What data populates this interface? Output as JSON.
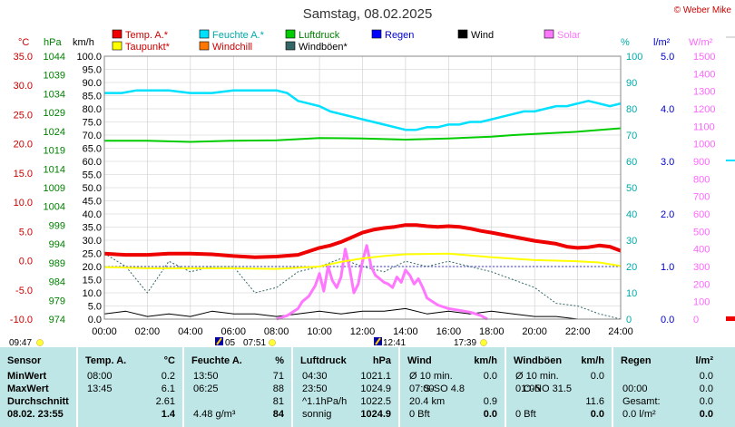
{
  "chart_data": {
    "type": "line",
    "title": "Samstag, 08.02.2025",
    "copyright": "© Weber Mike",
    "x_ticks": [
      "00:00",
      "02:00",
      "04:00",
      "06:00",
      "08:00",
      "10:00",
      "12:00",
      "14:00",
      "16:00",
      "18:00",
      "20:00",
      "22:00",
      "24:00"
    ],
    "axes": {
      "temp_c": {
        "unit": "°C",
        "ticks": [
          "35.0",
          "30.0",
          "25.0",
          "20.0",
          "15.0",
          "10.0",
          "5.0",
          "0.0",
          "-5.0",
          "-10.0"
        ],
        "range": [
          -10,
          35
        ],
        "color": "#cc0000"
      },
      "pressure_hpa": {
        "unit": "hPa",
        "ticks": [
          "1044",
          "1039",
          "1034",
          "1029",
          "1024",
          "1019",
          "1014",
          "1009",
          "1004",
          "999",
          "994",
          "989",
          "984",
          "979",
          "974"
        ],
        "range": [
          974,
          1044
        ],
        "color": "#008000"
      },
      "wind_kmh": {
        "unit": "km/h",
        "ticks": [
          "100.0",
          "95.0",
          "90.0",
          "85.0",
          "80.0",
          "75.0",
          "70.0",
          "65.0",
          "60.0",
          "55.0",
          "50.0",
          "45.0",
          "40.0",
          "35.0",
          "30.0",
          "25.0",
          "20.0",
          "15.0",
          "10.0",
          "5.0",
          "0.0"
        ],
        "range": [
          0,
          100
        ],
        "color": "#000000"
      },
      "humidity_pct": {
        "unit": "%",
        "ticks": [
          "100",
          "90",
          "80",
          "70",
          "60",
          "50",
          "40",
          "30",
          "20",
          "10",
          "0"
        ],
        "range": [
          0,
          100
        ],
        "color": "#00aaaa"
      },
      "rain_lm2": {
        "unit": "l/m²",
        "ticks": [
          "5.0",
          "4.0",
          "3.0",
          "2.0",
          "1.0",
          "0.0"
        ],
        "range": [
          0,
          5
        ],
        "color": "#0000cc"
      },
      "solar_wm2": {
        "unit": "W/m²",
        "ticks": [
          "1500",
          "1400",
          "1300",
          "1200",
          "1100",
          "1000",
          "900",
          "800",
          "700",
          "600",
          "500",
          "400",
          "300",
          "200",
          "100",
          "0"
        ],
        "range": [
          0,
          1500
        ],
        "color": "#ff66ff"
      }
    },
    "legend": [
      {
        "name": "Temp. A.*",
        "color": "#ee0000"
      },
      {
        "name": "Feuchte A.*",
        "color": "#00e0ff"
      },
      {
        "name": "Luftdruck",
        "color": "#00cc00"
      },
      {
        "name": "Regen",
        "color": "#0000ff"
      },
      {
        "name": "Wind",
        "color": "#000000"
      },
      {
        "name": "Solar",
        "color": "#ff77ff"
      },
      {
        "name": "Taupunkt*",
        "color": "#ffff00"
      },
      {
        "name": "Windchill",
        "color": "#ff7700"
      },
      {
        "name": "Windböen*",
        "color": "#336666"
      }
    ],
    "series": [
      {
        "name": "Temp. A.*",
        "axis": "temp_c",
        "color": "#ee0000",
        "x": [
          0,
          1,
          2,
          3,
          4,
          5,
          6,
          7,
          8,
          9,
          10,
          10.5,
          11,
          11.5,
          12,
          12.5,
          13,
          13.5,
          14,
          14.5,
          15,
          15.5,
          16,
          16.5,
          17,
          17.5,
          18,
          19,
          20,
          21,
          21.5,
          22,
          22.5,
          23,
          23.5,
          24
        ],
        "y": [
          1.2,
          1.0,
          1.0,
          1.2,
          1.2,
          1.1,
          0.8,
          0.6,
          0.7,
          1.0,
          2.2,
          2.6,
          3.2,
          4.0,
          4.8,
          5.3,
          5.6,
          5.8,
          6.1,
          6.1,
          5.9,
          5.8,
          5.9,
          5.8,
          5.5,
          5.1,
          4.8,
          4.1,
          3.4,
          2.9,
          2.4,
          2.2,
          2.3,
          2.6,
          2.4,
          1.7
        ]
      },
      {
        "name": "Taupunkt*",
        "axis": "temp_c",
        "color": "#ffff00",
        "x": [
          0,
          2,
          4,
          6,
          8,
          10,
          11,
          12,
          13,
          14,
          16,
          18,
          20,
          22,
          23,
          24
        ],
        "y": [
          -1.1,
          -1.3,
          -1.3,
          -1.3,
          -1.4,
          -1.0,
          -0.2,
          0.4,
          0.8,
          1.1,
          1.2,
          0.6,
          0.1,
          -0.1,
          -0.3,
          -0.9
        ]
      },
      {
        "name": "Luftdruck",
        "axis": "pressure_hpa",
        "color": "#00cc00",
        "x": [
          0,
          2,
          4,
          6,
          8,
          10,
          12,
          14,
          16,
          18,
          19,
          20,
          22,
          24
        ],
        "y": [
          1021.5,
          1021.5,
          1021.2,
          1021.5,
          1021.6,
          1022.2,
          1022.1,
          1021.8,
          1022.1,
          1022.6,
          1023.0,
          1023.3,
          1023.9,
          1024.8
        ]
      },
      {
        "name": "Feuchte A.*",
        "axis": "humidity_pct",
        "color": "#00e0ff",
        "x": [
          0,
          0.8,
          1.5,
          2.5,
          3,
          4,
          5,
          6,
          7,
          8,
          8.5,
          9,
          9.5,
          10,
          10.5,
          11,
          11.5,
          12,
          12.5,
          13,
          13.5,
          14,
          14.5,
          15,
          15.5,
          16,
          16.5,
          17,
          17.5,
          18,
          18.5,
          19,
          19.5,
          20,
          20.5,
          21,
          21.5,
          22,
          22.5,
          23,
          23.5,
          24
        ],
        "y": [
          86,
          86,
          87,
          87,
          87,
          86,
          86,
          87,
          87,
          87,
          86,
          83,
          82,
          81,
          79,
          78,
          77,
          76,
          75,
          74,
          73,
          72,
          72,
          73,
          73,
          74,
          74,
          75,
          75,
          76,
          77,
          78,
          79,
          79,
          80,
          81,
          81,
          82,
          83,
          82,
          81,
          82
        ]
      },
      {
        "name": "Solar",
        "axis": "solar_wm2",
        "color": "#ff77ff",
        "x": [
          8,
          8.5,
          9,
          9.2,
          9.5,
          9.8,
          10,
          10.2,
          10.4,
          10.6,
          10.8,
          11,
          11.2,
          11.4,
          11.6,
          11.8,
          12,
          12.2,
          12.4,
          12.6,
          12.8,
          13,
          13.2,
          13.4,
          13.6,
          13.8,
          14,
          14.2,
          14.4,
          14.6,
          14.8,
          15,
          15.5,
          16,
          16.5,
          17,
          17.5,
          17.8
        ],
        "y": [
          0,
          20,
          60,
          100,
          130,
          190,
          260,
          160,
          300,
          220,
          180,
          240,
          400,
          290,
          150,
          200,
          330,
          420,
          300,
          250,
          230,
          210,
          200,
          180,
          240,
          210,
          280,
          250,
          200,
          230,
          180,
          120,
          80,
          60,
          50,
          40,
          20,
          0
        ]
      },
      {
        "name": "Wind",
        "axis": "wind_kmh",
        "color": "#000000",
        "x": [
          0,
          1,
          2,
          3,
          4,
          5,
          6,
          7,
          8,
          9,
          10,
          11,
          12,
          13,
          14,
          15,
          16,
          17,
          18,
          19,
          20,
          21,
          22,
          23,
          24
        ],
        "y": [
          2,
          3,
          1,
          2,
          1,
          3,
          2,
          2,
          1,
          2,
          3,
          2,
          3,
          3,
          4,
          2,
          3,
          2,
          3,
          2,
          1,
          1,
          0,
          0,
          0
        ]
      },
      {
        "name": "Windböen*",
        "axis": "wind_kmh",
        "color": "#336666",
        "x": [
          0,
          1,
          2,
          3,
          4,
          5,
          6,
          7,
          8,
          9,
          10,
          11,
          12,
          13,
          14,
          15,
          16,
          17,
          18,
          19,
          20,
          21,
          22,
          23,
          24
        ],
        "y": [
          25,
          20,
          10,
          22,
          18,
          20,
          20,
          10,
          12,
          18,
          20,
          23,
          20,
          18,
          22,
          20,
          22,
          20,
          18,
          15,
          12,
          6,
          5,
          2,
          0
        ]
      }
    ],
    "rain_reference_y": 1.0,
    "bottom_markers": {
      "sunrise": "09:47",
      "moon": [
        "05",
        "07:51"
      ],
      "tmax": "12:41",
      "sunset": "17:39"
    }
  },
  "table": {
    "columns": [
      {
        "header": "Sensor",
        "rows": [
          "MinWert",
          "MaxWert",
          "Durchschnitt",
          "08.02. 23:55"
        ]
      },
      {
        "header": "Temp. A.",
        "unit": "°C",
        "times": [
          "08:00",
          "13:45",
          "",
          ""
        ],
        "values": [
          "0.2",
          "6.1",
          "2.61",
          "1.4"
        ]
      },
      {
        "header": "Feuchte A.",
        "unit": "%",
        "times": [
          "13:50",
          "06:25",
          "",
          "4.48 g/m³"
        ],
        "values": [
          "71",
          "88",
          "81",
          "84"
        ]
      },
      {
        "header": "Luftdruck",
        "unit": "hPa",
        "times": [
          "04:30",
          "23:50",
          "^1.1hPa/h",
          "sonnig"
        ],
        "values": [
          "1021.1",
          "1024.9",
          "1022.5",
          "1024.9"
        ]
      },
      {
        "header": "Wind",
        "unit": "km/h",
        "times": [
          "Ø 10 min.",
          "07:00",
          "20.4 km",
          "0 Bft"
        ],
        "mids": [
          "",
          "S-SO 4.8",
          "",
          ""
        ],
        "values": [
          "0.0",
          "",
          "0.9",
          "0.0"
        ]
      },
      {
        "header": "Windböen",
        "unit": "km/h",
        "times": [
          "Ø 10 min.",
          "01:05",
          "",
          "0 Bft"
        ],
        "mids": [
          "",
          "O-NO 31.5",
          "",
          ""
        ],
        "values": [
          "0.0",
          "",
          "11.6",
          "0.0"
        ]
      },
      {
        "header": "Regen",
        "unit": "l/m²",
        "times": [
          "",
          "00:00",
          "Gesamt:",
          "0.0 l/m²"
        ],
        "values": [
          "0.0",
          "0.0",
          "0.0",
          "0.0"
        ]
      }
    ]
  }
}
